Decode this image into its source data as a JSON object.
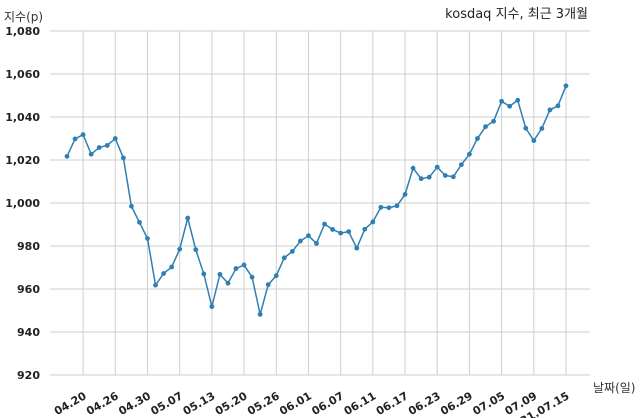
{
  "chart_data": {
    "type": "line",
    "title": "kosdaq 지수, 최근 3개월",
    "xlabel": "날짜(일)",
    "ylabel": "지수(p)",
    "ylim": [
      920,
      1080
    ],
    "yticks": [
      920,
      940,
      960,
      980,
      1000,
      1020,
      1040,
      1060,
      1080
    ],
    "ytick_labels": [
      "920",
      "940",
      "960",
      "980",
      "1,000",
      "1,020",
      "1,040",
      "1,060",
      "1,080"
    ],
    "grid": true,
    "x_tick_labels": [
      {
        "index": 2,
        "label": "04.20"
      },
      {
        "index": 6,
        "label": "04.26"
      },
      {
        "index": 10,
        "label": "04.30"
      },
      {
        "index": 14,
        "label": "05.07"
      },
      {
        "index": 18,
        "label": "05.13"
      },
      {
        "index": 22,
        "label": "05.20"
      },
      {
        "index": 26,
        "label": "05.26"
      },
      {
        "index": 30,
        "label": "06.01"
      },
      {
        "index": 34,
        "label": "06.07"
      },
      {
        "index": 38,
        "label": "06.11"
      },
      {
        "index": 42,
        "label": "06.17"
      },
      {
        "index": 46,
        "label": "06.23"
      },
      {
        "index": 50,
        "label": "06.29"
      },
      {
        "index": 54,
        "label": "07.05"
      },
      {
        "index": 58,
        "label": "07.09"
      },
      {
        "index": 62,
        "label": "21.07.15"
      }
    ],
    "values": [
      1021.7,
      1029.8,
      1031.8,
      1022.7,
      1025.8,
      1026.8,
      1030.0,
      1021.0,
      998.5,
      991.0,
      983.5,
      961.8,
      967.2,
      970.2,
      978.5,
      993.0,
      978.3,
      967.0,
      951.8,
      966.8,
      962.7,
      969.5,
      971.2,
      965.5,
      948.2,
      962.0,
      966.2,
      974.5,
      977.5,
      982.3,
      984.8,
      981.2,
      990.2,
      987.7,
      986.0,
      986.7,
      979.0,
      987.8,
      991.2,
      998.0,
      997.8,
      998.7,
      1004.0,
      1016.2,
      1011.3,
      1012.0,
      1016.7,
      1012.8,
      1012.2,
      1017.8,
      1022.7,
      1030.0,
      1035.5,
      1038.0,
      1047.3,
      1045.0,
      1047.8,
      1034.8,
      1029.0,
      1034.7,
      1043.3,
      1045.2,
      1054.5
    ]
  }
}
